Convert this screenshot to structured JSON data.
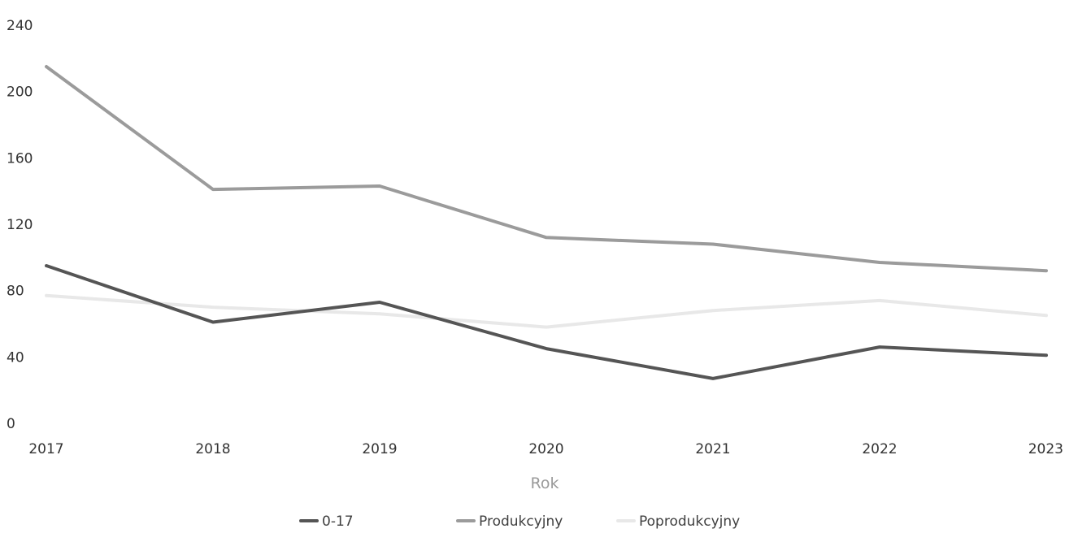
{
  "chart_data": {
    "type": "line",
    "title": "",
    "xlabel": "Rok",
    "ylabel": "",
    "x": [
      "2017",
      "2018",
      "2019",
      "2020",
      "2021",
      "2022",
      "2023"
    ],
    "ylim": [
      0,
      240
    ],
    "yticks": [
      "0",
      "40",
      "80",
      "120",
      "160",
      "200",
      "240"
    ],
    "grid": false,
    "legend_position": "bottom",
    "series": [
      {
        "name": "0-17",
        "color": "#555555",
        "values": [
          95,
          61,
          73,
          45,
          27,
          46,
          41
        ]
      },
      {
        "name": "Produkcyjny",
        "color": "#9b9b9b",
        "values": [
          215,
          141,
          143,
          112,
          108,
          97,
          92
        ]
      },
      {
        "name": "Poprodukcyjny",
        "color": "#e8e8e8",
        "values": [
          77,
          70,
          66,
          58,
          68,
          74,
          65
        ]
      }
    ]
  }
}
